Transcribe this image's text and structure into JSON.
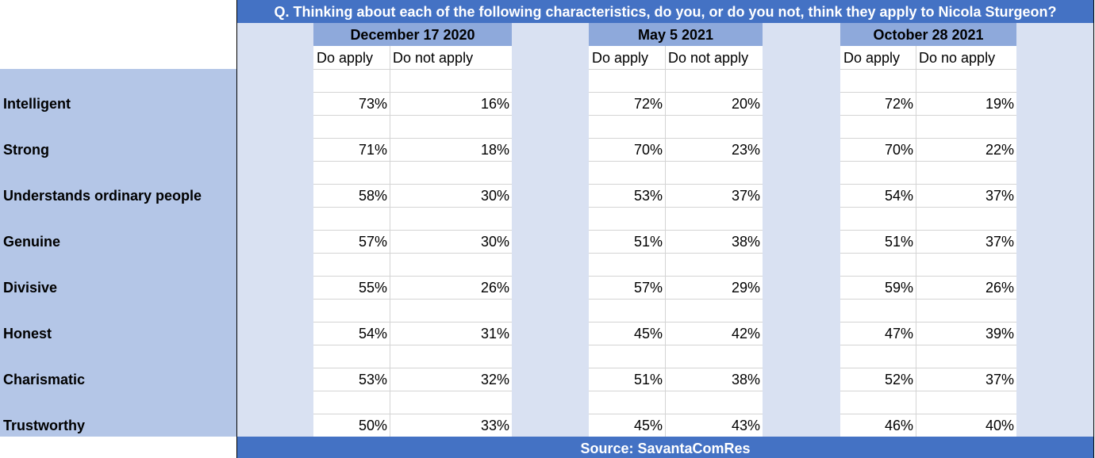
{
  "title": "Q. Thinking about each of the following characteristics, do you, or do you not, think they apply to Nicola Sturgeon?",
  "periods": [
    {
      "date": "December 17 2020",
      "columns": [
        "Do apply",
        "Do not apply"
      ]
    },
    {
      "date": "May 5 2021",
      "columns": [
        "Do apply",
        "Do not apply"
      ]
    },
    {
      "date": "October 28 2021",
      "columns": [
        "Do apply",
        "Do no apply"
      ]
    }
  ],
  "rows": [
    {
      "label": "Intelligent",
      "values": [
        "73%",
        "16%",
        "72%",
        "20%",
        "72%",
        "19%"
      ]
    },
    {
      "label": "Strong",
      "values": [
        "71%",
        "18%",
        "70%",
        "23%",
        "70%",
        "22%"
      ]
    },
    {
      "label": "Understands ordinary people",
      "values": [
        "58%",
        "30%",
        "53%",
        "37%",
        "54%",
        "37%"
      ]
    },
    {
      "label": "Genuine",
      "values": [
        "57%",
        "30%",
        "51%",
        "38%",
        "51%",
        "37%"
      ]
    },
    {
      "label": "Divisive",
      "values": [
        "55%",
        "26%",
        "57%",
        "29%",
        "59%",
        "26%"
      ]
    },
    {
      "label": "Honest",
      "values": [
        "54%",
        "31%",
        "45%",
        "42%",
        "47%",
        "39%"
      ]
    },
    {
      "label": "Charismatic",
      "values": [
        "53%",
        "32%",
        "51%",
        "38%",
        "52%",
        "37%"
      ]
    },
    {
      "label": "Trustworthy",
      "values": [
        "50%",
        "33%",
        "45%",
        "43%",
        "46%",
        "40%"
      ]
    }
  ],
  "source": "Source: SavantaComRes"
}
